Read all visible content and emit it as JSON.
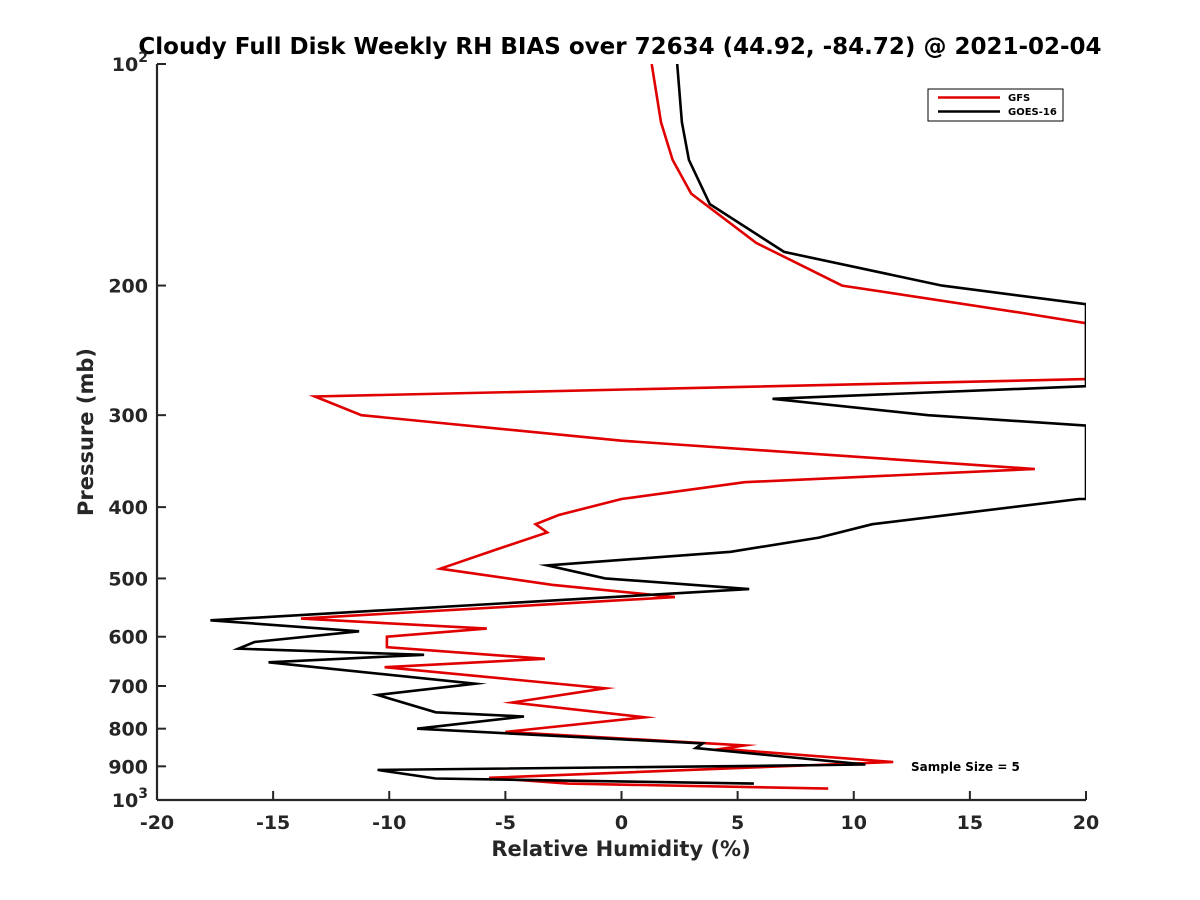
{
  "chart_data": {
    "type": "line",
    "title": "Cloudy Full Disk Weekly RH BIAS over 72634 (44.92, -84.72) @ 2021-02-04",
    "xlabel": "Relative Humidity (%)",
    "ylabel": "Pressure (mb)",
    "xlim": [
      -20,
      20
    ],
    "ylim": [
      100,
      1000
    ],
    "y_scale": "log",
    "y_reversed": true,
    "grid": false,
    "legend_position": "top-right",
    "x_ticks": [
      "-20",
      "-15",
      "-10",
      "-5",
      "0",
      "5",
      "10",
      "15",
      "20"
    ],
    "y_ticks": [
      {
        "value": 100,
        "base": "10",
        "exp": "2"
      },
      {
        "value": 200,
        "label": "200"
      },
      {
        "value": 300,
        "label": "300"
      },
      {
        "value": 400,
        "label": "400"
      },
      {
        "value": 500,
        "label": "500"
      },
      {
        "value": 600,
        "label": "600"
      },
      {
        "value": 700,
        "label": "700"
      },
      {
        "value": 800,
        "label": "800"
      },
      {
        "value": 900,
        "label": "900"
      },
      {
        "value": 1000,
        "base": "10",
        "exp": "3"
      }
    ],
    "annotation": "Sample Size = 5",
    "series": [
      {
        "name": "GFS",
        "color": "#e00000",
        "points": [
          [
            1.3,
            100
          ],
          [
            1.7,
            120
          ],
          [
            2.2,
            135
          ],
          [
            3.0,
            150
          ],
          [
            5.8,
            175
          ],
          [
            9.5,
            200
          ],
          [
            17.3,
            218
          ],
          [
            20,
            225
          ],
          [
            20,
            268
          ],
          [
            -13.2,
            283
          ],
          [
            -11.2,
            300
          ],
          [
            0,
            325
          ],
          [
            17.8,
            355
          ],
          [
            5.3,
            370
          ],
          [
            0,
            390
          ],
          [
            -2.7,
            410
          ],
          [
            -3.7,
            422
          ],
          [
            -3.2,
            433
          ],
          [
            -5.5,
            458
          ],
          [
            -7.8,
            485
          ],
          [
            -3.0,
            510
          ],
          [
            2.3,
            530
          ],
          [
            -13.8,
            567
          ],
          [
            -5.8,
            585
          ],
          [
            -10.1,
            600
          ],
          [
            -10.1,
            620
          ],
          [
            -3.3,
            643
          ],
          [
            -10.2,
            660
          ],
          [
            -0.7,
            705
          ],
          [
            -4.7,
            737
          ],
          [
            1.0,
            772
          ],
          [
            -5.0,
            808
          ],
          [
            5.3,
            843
          ],
          [
            4.3,
            852
          ],
          [
            11.7,
            888
          ],
          [
            -5.7,
            933
          ],
          [
            -2.3,
            950
          ],
          [
            8.9,
            965
          ]
        ]
      },
      {
        "name": "GOES-16",
        "color": "#000000",
        "points": [
          [
            2.4,
            100
          ],
          [
            2.6,
            120
          ],
          [
            2.9,
            135
          ],
          [
            3.8,
            155
          ],
          [
            7.0,
            180
          ],
          [
            13.8,
            200
          ],
          [
            20,
            212
          ],
          [
            20,
            274
          ],
          [
            6.5,
            285
          ],
          [
            13.2,
            300
          ],
          [
            20,
            310
          ],
          [
            20,
            390
          ],
          [
            19.7,
            390
          ],
          [
            10.8,
            422
          ],
          [
            8.5,
            440
          ],
          [
            4.7,
            460
          ],
          [
            -3.2,
            480
          ],
          [
            -0.7,
            500
          ],
          [
            5.5,
            517
          ],
          [
            -17.7,
            570
          ],
          [
            -11.3,
            590
          ],
          [
            -15.8,
            610
          ],
          [
            -16.5,
            623
          ],
          [
            -8.5,
            635
          ],
          [
            -15.2,
            650
          ],
          [
            -6.3,
            695
          ],
          [
            -10.5,
            720
          ],
          [
            -8.0,
            760
          ],
          [
            -4.2,
            770
          ],
          [
            -8.8,
            800
          ],
          [
            3.5,
            838
          ],
          [
            3.2,
            850
          ],
          [
            10.5,
            895
          ],
          [
            6.8,
            898
          ],
          [
            -10.5,
            910
          ],
          [
            -8.0,
            935
          ],
          [
            5.7,
            950
          ]
        ]
      }
    ]
  }
}
